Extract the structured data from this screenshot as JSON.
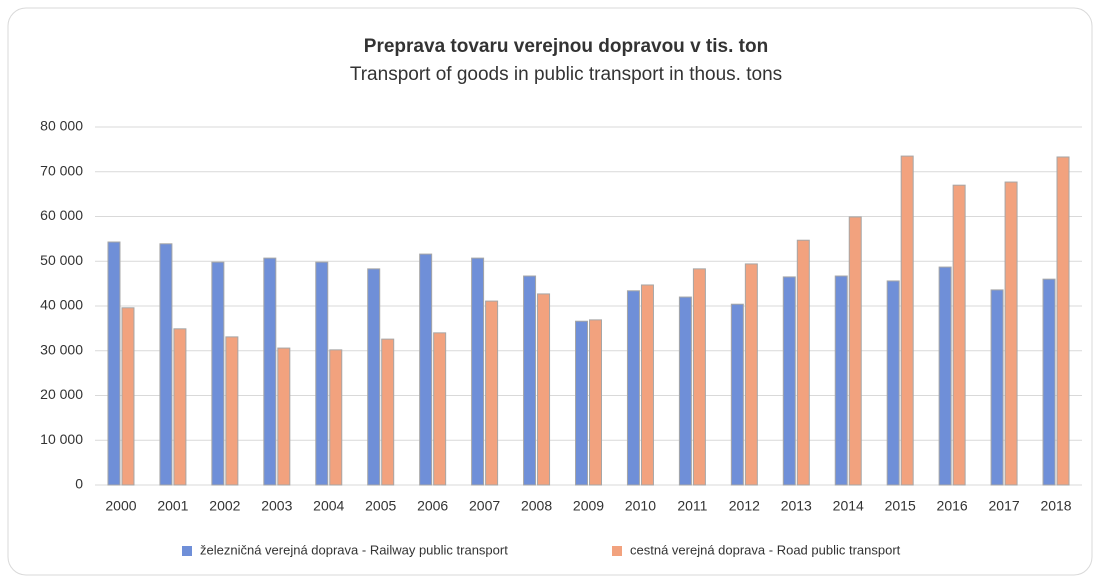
{
  "chart_data": {
    "type": "bar",
    "title": "Preprava tovaru verejnou dopravou v tis. ton",
    "subtitle": "Transport of goods in public transport in thous. tons",
    "categories": [
      "2000",
      "2001",
      "2002",
      "2003",
      "2004",
      "2005",
      "2006",
      "2007",
      "2008",
      "2009",
      "2010",
      "2011",
      "2012",
      "2013",
      "2014",
      "2015",
      "2016",
      "2017",
      "2018"
    ],
    "series": [
      {
        "name": "železničná verejná doprava - Railway public transport",
        "color": "#6f8fd8",
        "values": [
          54300,
          53900,
          49800,
          50700,
          49800,
          48300,
          51600,
          50700,
          46700,
          36600,
          43400,
          42000,
          40400,
          46500,
          46700,
          45600,
          48700,
          43600,
          46000
        ]
      },
      {
        "name": "cestná verejná doprava - Road public transport",
        "color": "#f2a27e",
        "values": [
          39600,
          34900,
          33100,
          30600,
          30200,
          32600,
          34000,
          41100,
          42700,
          36900,
          44700,
          48300,
          49400,
          54700,
          59900,
          73500,
          67000,
          67700,
          73300
        ]
      }
    ],
    "ylim": [
      0,
      80000
    ],
    "yticks": [
      0,
      {
        "value": 10000,
        "label": "10 000"
      },
      {
        "value": 20000,
        "label": "20 000"
      },
      {
        "value": 30000,
        "label": "30 000"
      },
      {
        "value": 40000,
        "label": "40 000"
      },
      {
        "value": 50000,
        "label": "50 000"
      },
      {
        "value": 60000,
        "label": "60 000"
      },
      {
        "value": 70000,
        "label": "70 000"
      },
      {
        "value": 80000,
        "label": "80 000"
      }
    ],
    "grid": true,
    "legend": "bottom"
  }
}
